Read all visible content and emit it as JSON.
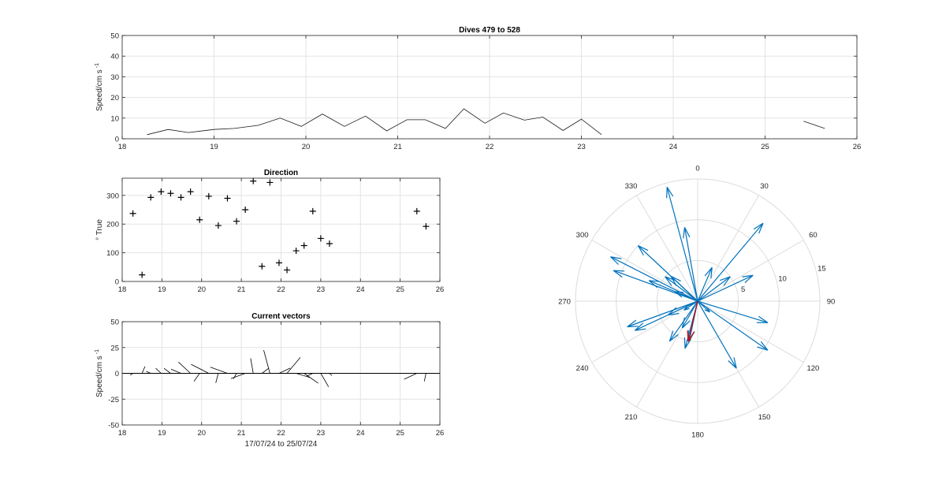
{
  "chart_data": [
    {
      "id": "speed",
      "type": "line",
      "title": "Dives 479 to 528",
      "ylabel": "Speed/cm s",
      "ylabel_sup": "-1",
      "xlim": [
        18,
        26
      ],
      "ylim": [
        0,
        50
      ],
      "xticks": [
        "18",
        "19",
        "20",
        "21",
        "22",
        "23",
        "24",
        "25",
        "26"
      ],
      "yticks": [
        "0",
        "10",
        "20",
        "30",
        "40",
        "50"
      ],
      "grid": true,
      "segments": [
        [
          [
            18.27,
            2
          ],
          [
            18.5,
            4.5
          ],
          [
            18.72,
            3
          ],
          [
            19.0,
            4.5
          ],
          [
            19.22,
            5
          ],
          [
            19.48,
            6.5
          ],
          [
            19.72,
            10
          ],
          [
            19.95,
            6
          ],
          [
            20.18,
            12
          ],
          [
            20.42,
            6
          ],
          [
            20.65,
            11
          ],
          [
            20.88,
            3.8
          ],
          [
            21.1,
            9.2
          ],
          [
            21.3,
            9.2
          ],
          [
            21.52,
            5
          ],
          [
            21.72,
            14.5
          ],
          [
            21.95,
            7.5
          ],
          [
            22.15,
            12.5
          ],
          [
            22.38,
            9
          ],
          [
            22.58,
            10.5
          ],
          [
            22.8,
            4
          ],
          [
            23.0,
            9.5
          ],
          [
            23.22,
            2
          ]
        ],
        [
          [
            25.42,
            8.5
          ],
          [
            25.65,
            5
          ]
        ]
      ]
    },
    {
      "id": "direction",
      "type": "scatter",
      "title": "Direction",
      "ylabel": "° True",
      "xlim": [
        18,
        26
      ],
      "ylim": [
        0,
        360
      ],
      "xticks": [
        "18",
        "19",
        "20",
        "21",
        "22",
        "23",
        "24",
        "25",
        "26"
      ],
      "yticks": [
        "0",
        "100",
        "200",
        "300"
      ],
      "grid": true,
      "points": [
        [
          18.27,
          237
        ],
        [
          18.5,
          23
        ],
        [
          18.72,
          293
        ],
        [
          18.98,
          313
        ],
        [
          19.22,
          307
        ],
        [
          19.48,
          293
        ],
        [
          19.72,
          313
        ],
        [
          19.95,
          215
        ],
        [
          20.18,
          297
        ],
        [
          20.42,
          195
        ],
        [
          20.65,
          290
        ],
        [
          20.88,
          210
        ],
        [
          21.1,
          250
        ],
        [
          21.3,
          350
        ],
        [
          21.52,
          53
        ],
        [
          21.72,
          345
        ],
        [
          21.95,
          65
        ],
        [
          22.15,
          40
        ],
        [
          22.38,
          107
        ],
        [
          22.58,
          125
        ],
        [
          22.8,
          245
        ],
        [
          23.0,
          150
        ],
        [
          23.22,
          132
        ],
        [
          25.42,
          245
        ],
        [
          25.65,
          192
        ]
      ]
    },
    {
      "id": "vectors",
      "type": "line",
      "title": "Current vectors",
      "ylabel": "Speed/cm s",
      "ylabel_sup": "-1",
      "xlabel": "17/07/24 to 25/07/24",
      "xlim": [
        18,
        26
      ],
      "ylim": [
        -50,
        50
      ],
      "xticks": [
        "18",
        "19",
        "20",
        "21",
        "22",
        "23",
        "24",
        "25",
        "26"
      ],
      "yticks": [
        "-50",
        "-25",
        "0",
        "25",
        "50"
      ],
      "grid": true,
      "note": "stick plot: each stick drawn from (time, 0) in direction of current",
      "sticks": [
        [
          18.27,
          2,
          237
        ],
        [
          18.5,
          4.5,
          23
        ],
        [
          18.72,
          3,
          293
        ],
        [
          18.98,
          4.5,
          313
        ],
        [
          19.22,
          5,
          307
        ],
        [
          19.48,
          6.5,
          293
        ],
        [
          19.72,
          10,
          313
        ],
        [
          19.95,
          6,
          215
        ],
        [
          20.18,
          12,
          297
        ],
        [
          20.42,
          6,
          195
        ],
        [
          20.65,
          11,
          290
        ],
        [
          20.88,
          3.8,
          210
        ],
        [
          21.1,
          9.2,
          250
        ],
        [
          21.3,
          9.2,
          350
        ],
        [
          21.52,
          5,
          53
        ],
        [
          21.72,
          14.5,
          345
        ],
        [
          21.95,
          7.5,
          65
        ],
        [
          22.15,
          12.5,
          40
        ],
        [
          22.38,
          9,
          107
        ],
        [
          22.58,
          10.5,
          125
        ],
        [
          22.8,
          4,
          245
        ],
        [
          23.0,
          9.5,
          150
        ],
        [
          23.22,
          2,
          132
        ],
        [
          25.42,
          8.5,
          245
        ],
        [
          25.65,
          5,
          192
        ]
      ]
    },
    {
      "id": "polar",
      "type": "scatter",
      "note": "polar compass plot of current vectors",
      "angle_labels": [
        "0",
        "30",
        "60",
        "90",
        "120",
        "150",
        "180",
        "210",
        "240",
        "270",
        "300",
        "330"
      ],
      "radial_labels": [
        "5",
        "10",
        "15"
      ],
      "rmax": 15,
      "vector_color": "#0072bd",
      "mean_color": "#d40000",
      "vectors": [
        [
          2,
          237
        ],
        [
          4.5,
          23
        ],
        [
          3,
          293
        ],
        [
          4.5,
          313
        ],
        [
          5,
          307
        ],
        [
          6.5,
          293
        ],
        [
          10,
          313
        ],
        [
          6,
          215
        ],
        [
          12,
          297
        ],
        [
          6,
          195
        ],
        [
          11,
          290
        ],
        [
          3.8,
          210
        ],
        [
          9.2,
          250
        ],
        [
          9.2,
          350
        ],
        [
          5,
          53
        ],
        [
          14.5,
          345
        ],
        [
          7.5,
          65
        ],
        [
          12.5,
          40
        ],
        [
          9,
          107
        ],
        [
          10.5,
          125
        ],
        [
          4,
          245
        ],
        [
          9.5,
          150
        ],
        [
          2,
          132
        ],
        [
          8.5,
          245
        ],
        [
          5,
          192
        ]
      ],
      "mean_vector": [
        5.1,
        193
      ]
    }
  ]
}
